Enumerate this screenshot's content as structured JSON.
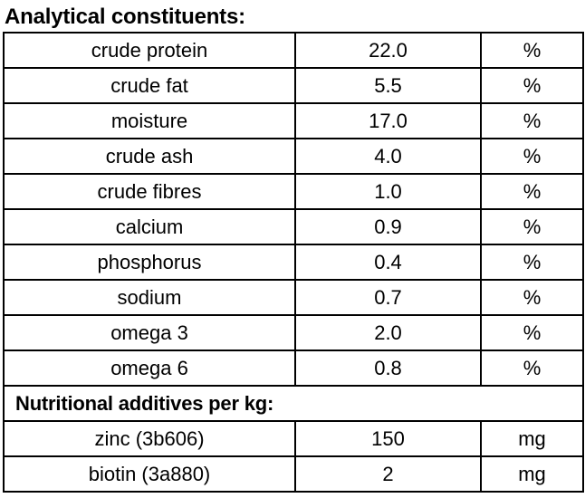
{
  "title": "Analytical constituents:",
  "table": {
    "constituents": [
      {
        "name": "crude protein",
        "value": "22.0",
        "unit": "%"
      },
      {
        "name": "crude fat",
        "value": "5.5",
        "unit": "%"
      },
      {
        "name": "moisture",
        "value": "17.0",
        "unit": "%"
      },
      {
        "name": "crude ash",
        "value": "4.0",
        "unit": "%"
      },
      {
        "name": "crude fibres",
        "value": "1.0",
        "unit": "%"
      },
      {
        "name": "calcium",
        "value": "0.9",
        "unit": "%"
      },
      {
        "name": "phosphorus",
        "value": "0.4",
        "unit": "%"
      },
      {
        "name": "sodium",
        "value": "0.7",
        "unit": "%"
      },
      {
        "name": "omega 3",
        "value": "2.0",
        "unit": "%"
      },
      {
        "name": "omega 6",
        "value": "0.8",
        "unit": "%"
      }
    ],
    "additives_header": "Nutritional additives per kg:",
    "additives": [
      {
        "name": "zinc (3b606)",
        "value": "150",
        "unit": "mg"
      },
      {
        "name": "biotin (3a880)",
        "value": "2",
        "unit": "mg"
      }
    ]
  },
  "colors": {
    "background": "#ffffff",
    "text": "#000000",
    "border": "#000000"
  }
}
